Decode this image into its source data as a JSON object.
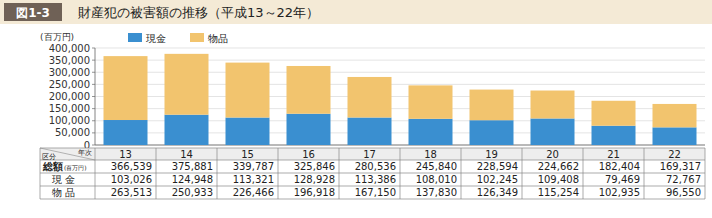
{
  "chart_data": {
    "type": "bar",
    "stacked": true,
    "grid": true,
    "figure_label": "図1-3",
    "title": "財産犯の被害額の推移（平成13～22年）",
    "y_label": "(百万円)",
    "categories": [
      "13",
      "14",
      "15",
      "16",
      "17",
      "18",
      "19",
      "20",
      "21",
      "22"
    ],
    "ylim": [
      0,
      400000
    ],
    "yticks": [
      0,
      {
        "value": 50000,
        "label": "50,000"
      },
      {
        "value": 100000,
        "label": "100,000"
      },
      {
        "value": 150000,
        "label": "150,000"
      },
      {
        "value": 200000,
        "label": "200,000"
      },
      {
        "value": 250000,
        "label": "250,000"
      },
      {
        "value": 300000,
        "label": "300,000"
      },
      {
        "value": 350000,
        "label": "350,000"
      },
      {
        "value": 400000,
        "label": "400,000"
      }
    ],
    "series": [
      {
        "name": "現金",
        "row_label": "現 金",
        "color": "#3a8fd0",
        "values": [
          103026,
          124948,
          113321,
          128928,
          113386,
          108010,
          102245,
          109408,
          79469,
          72767
        ],
        "value_labels": [
          "103,026",
          "124,948",
          "113,321",
          "128,928",
          "113,386",
          "108,010",
          "102,245",
          "109,408",
          "79,469",
          "72,767"
        ]
      },
      {
        "name": "物品",
        "row_label": "物 品",
        "color": "#f2c46e",
        "values": [
          263513,
          250933,
          226466,
          196918,
          167150,
          137830,
          126349,
          115254,
          102935,
          96550
        ],
        "value_labels": [
          "263,513",
          "250,933",
          "226,466",
          "196,918",
          "167,150",
          "137,830",
          "126,349",
          "115,254",
          "102,935",
          "96,550"
        ]
      }
    ],
    "table": {
      "header_row": "区分",
      "header_col": "年次",
      "totals": {
        "label": "総額",
        "unit": "(百万円)",
        "values": [
          366539,
          375881,
          339787,
          325846,
          280536,
          245840,
          228594,
          224662,
          182404,
          169317
        ],
        "value_labels": [
          "366,539",
          "375,881",
          "339,787",
          "325,846",
          "280,536",
          "245,840",
          "228,594",
          "224,662",
          "182,404",
          "169,317"
        ]
      }
    }
  }
}
